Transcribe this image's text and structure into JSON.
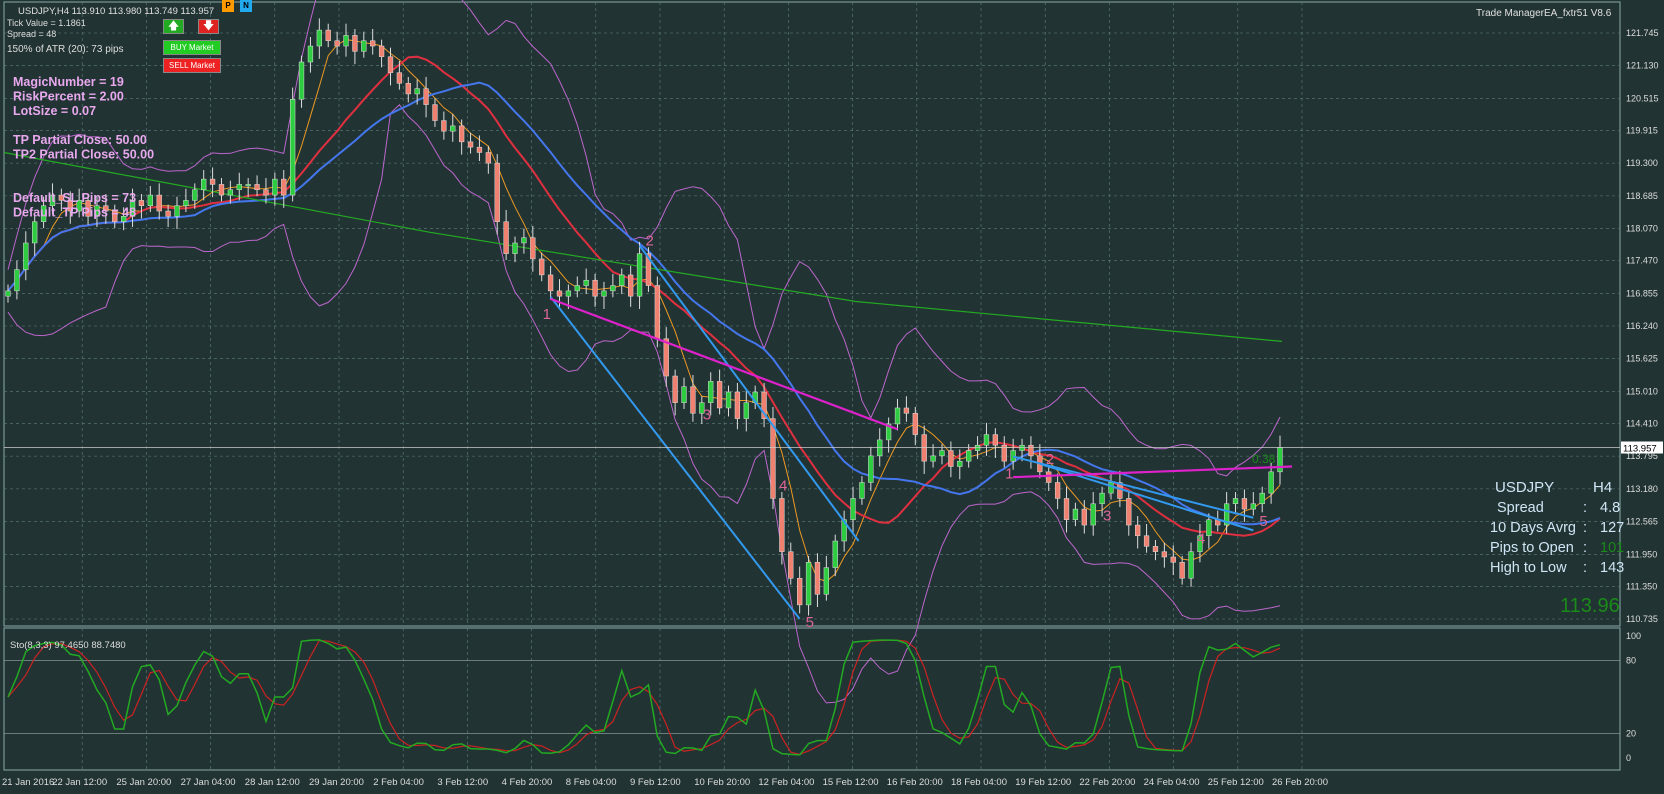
{
  "header": {
    "symbol_line": "USDJPY,H4  113.910 113.980 113.749 113.957",
    "ea_label": "Trade ManagerEA_fxtr51 V8.6"
  },
  "info": {
    "tick_value": "Tick Value = 1.1861",
    "spread": "Spread = 48",
    "atr": "150% of ATR (20): 73 pips"
  },
  "buttons": {
    "up_icon": "arrow-up-icon",
    "down_icon": "arrow-down-icon",
    "buy": "BUY Market",
    "sell": "SELL Market",
    "p": "P",
    "n": "N"
  },
  "params": [
    "MagicNumber = 19",
    "RiskPercent = 2.00",
    "LotSize = 0.07",
    "",
    "TP Partial Close: 50.00",
    "TP2 Partial Close: 50.00",
    "",
    "",
    "Default_SL Pips = 73",
    "Default_TP Pips = 48"
  ],
  "panel": {
    "symbol": "USDJPY",
    "timeframe": "H4",
    "rows": [
      {
        "label": "Spread",
        "sep": ":",
        "value": "4.8"
      },
      {
        "label": "10 Days Avrg",
        "sep": ":",
        "value": "127"
      },
      {
        "label": "Pips to Open",
        "sep": ":",
        "value": "101"
      },
      {
        "label": "High to Low",
        "sep": ":",
        "value": "143"
      }
    ],
    "big_price": "113.96",
    "ratio": "0.38"
  },
  "current_price": "113.957",
  "colors": {
    "background": "#223333",
    "bull": "#2ecc40",
    "bear": "#f08070",
    "sma200": "#22aa22",
    "ma_red": "#e03040",
    "ma_blue": "#4477ee",
    "ma_orange": "#ee9922",
    "bands": "#bb66cc",
    "channel": "#3399ee",
    "pivot_line": "#dd22cc",
    "wave_labels": "#dd6699",
    "stoch_main": "#22aa22",
    "stoch_signal": "#cc2222"
  },
  "chart_data": {
    "type": "candlestick",
    "symbol": "USDJPY",
    "timeframe": "H4",
    "ohlc": {
      "open": 113.91,
      "high": 113.98,
      "low": 113.749,
      "close": 113.957
    },
    "y_ticks": [
      "121.745",
      "121.130",
      "120.515",
      "119.915",
      "119.300",
      "118.685",
      "118.070",
      "117.470",
      "116.855",
      "116.240",
      "115.625",
      "115.010",
      "114.410",
      "113.795",
      "113.180",
      "112.565",
      "111.950",
      "111.350",
      "110.735"
    ],
    "x_labels": [
      "21 Jan 2016",
      "22 Jan 12:00",
      "25 Jan 20:00",
      "27 Jan 04:00",
      "28 Jan 12:00",
      "29 Jan 20:00",
      "2 Feb 04:00",
      "3 Feb 12:00",
      "4 Feb 20:00",
      "8 Feb 04:00",
      "9 Feb 12:00",
      "10 Feb 20:00",
      "12 Feb 04:00",
      "15 Feb 12:00",
      "16 Feb 20:00",
      "18 Feb 04:00",
      "19 Feb 12:00",
      "22 Feb 20:00",
      "24 Feb 04:00",
      "25 Feb 12:00",
      "26 Feb 20:00"
    ],
    "ylim": [
      110.6,
      122.0
    ],
    "closes": [
      116.9,
      117.3,
      117.8,
      118.2,
      118.5,
      118.7,
      118.6,
      118.4,
      118.6,
      118.3,
      118.5,
      118.4,
      118.2,
      118.3,
      118.6,
      118.5,
      118.7,
      118.4,
      118.3,
      118.5,
      118.6,
      118.8,
      119.0,
      118.9,
      118.7,
      118.8,
      118.9,
      118.9,
      118.8,
      118.7,
      119.0,
      118.7,
      120.5,
      121.2,
      121.5,
      121.8,
      121.6,
      121.5,
      121.7,
      121.4,
      121.6,
      121.5,
      121.3,
      121.0,
      120.8,
      120.6,
      120.7,
      120.4,
      120.1,
      119.9,
      120.0,
      119.7,
      119.6,
      119.5,
      119.3,
      118.2,
      117.6,
      117.8,
      117.9,
      117.5,
      117.2,
      116.9,
      116.8,
      116.9,
      117.0,
      117.1,
      116.8,
      116.9,
      117.0,
      117.2,
      116.8,
      117.6,
      117.0,
      116.0,
      115.3,
      114.8,
      115.1,
      114.6,
      114.8,
      115.2,
      114.7,
      115.0,
      114.5,
      114.8,
      115.0,
      114.5,
      113.0,
      112.0,
      111.5,
      111.0,
      111.8,
      111.2,
      111.7,
      112.2,
      112.6,
      113.0,
      113.3,
      113.8,
      114.1,
      114.4,
      114.7,
      114.6,
      114.2,
      113.7,
      113.8,
      113.9,
      113.6,
      113.7,
      113.9,
      114.0,
      114.2,
      114.0,
      113.7,
      113.9,
      114.0,
      113.8,
      113.5,
      113.3,
      113.0,
      112.6,
      112.8,
      112.5,
      112.9,
      113.1,
      113.3,
      113.0,
      112.5,
      112.3,
      112.1,
      112.0,
      111.9,
      111.8,
      111.5,
      112.0,
      112.3,
      112.6,
      112.5,
      112.9,
      113.0,
      112.8,
      112.9,
      113.1,
      113.5,
      113.96
    ],
    "sma200": [
      119.5,
      118.0,
      116.7,
      115.95
    ],
    "stochastic": {
      "label": "Sto(8,3,3) 97.4650 88.7480",
      "levels": [
        80,
        20
      ],
      "scale": [
        "100",
        "80",
        "20",
        "0"
      ]
    },
    "waves_first": [
      {
        "label": "1",
        "at": 61
      },
      {
        "label": "2",
        "at": 71
      },
      {
        "label": "3",
        "at": 79
      },
      {
        "label": "4",
        "at": 86
      },
      {
        "label": "5",
        "at": 89
      }
    ],
    "waves_second": [
      {
        "label": "1",
        "at": 113
      },
      {
        "label": "2",
        "at": 116
      },
      {
        "label": "3",
        "at": 124
      },
      {
        "label": "4",
        "at": 133
      },
      {
        "label": "5",
        "at": 140
      }
    ]
  }
}
